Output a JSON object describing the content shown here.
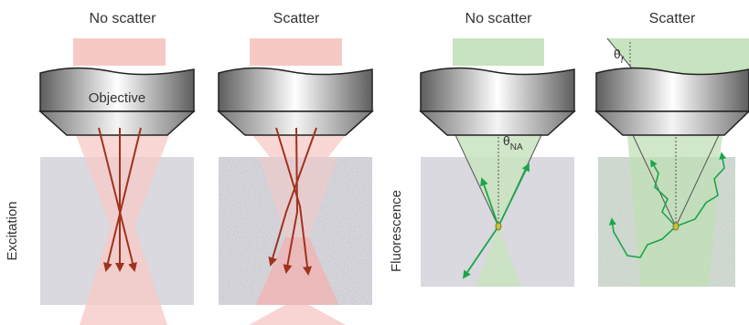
{
  "panels": [
    {
      "title": "No scatter"
    },
    {
      "title": "Scatter"
    },
    {
      "title": "No scatter"
    },
    {
      "title": "Scatter"
    }
  ],
  "lens_label": "Objective",
  "row_labels": {
    "excitation": "Excitation",
    "fluorescence": "Fluorescence"
  },
  "angle_labels": {
    "theta_na": "θ",
    "theta_na_sub": "NA",
    "theta_f": "θ",
    "theta_f_sub": "f"
  },
  "colors": {
    "excitation_beam": "#f6c9c7",
    "excitation_ray": "#a0321e",
    "fluorescence_beam": "#c8e3bf",
    "fluorescence_ray": "#1aa64a",
    "tissue": "#d9d9df",
    "lens_mid": "#ffffff",
    "lens_edge": "#6b6b6b",
    "emitter": "#c6c23a"
  }
}
